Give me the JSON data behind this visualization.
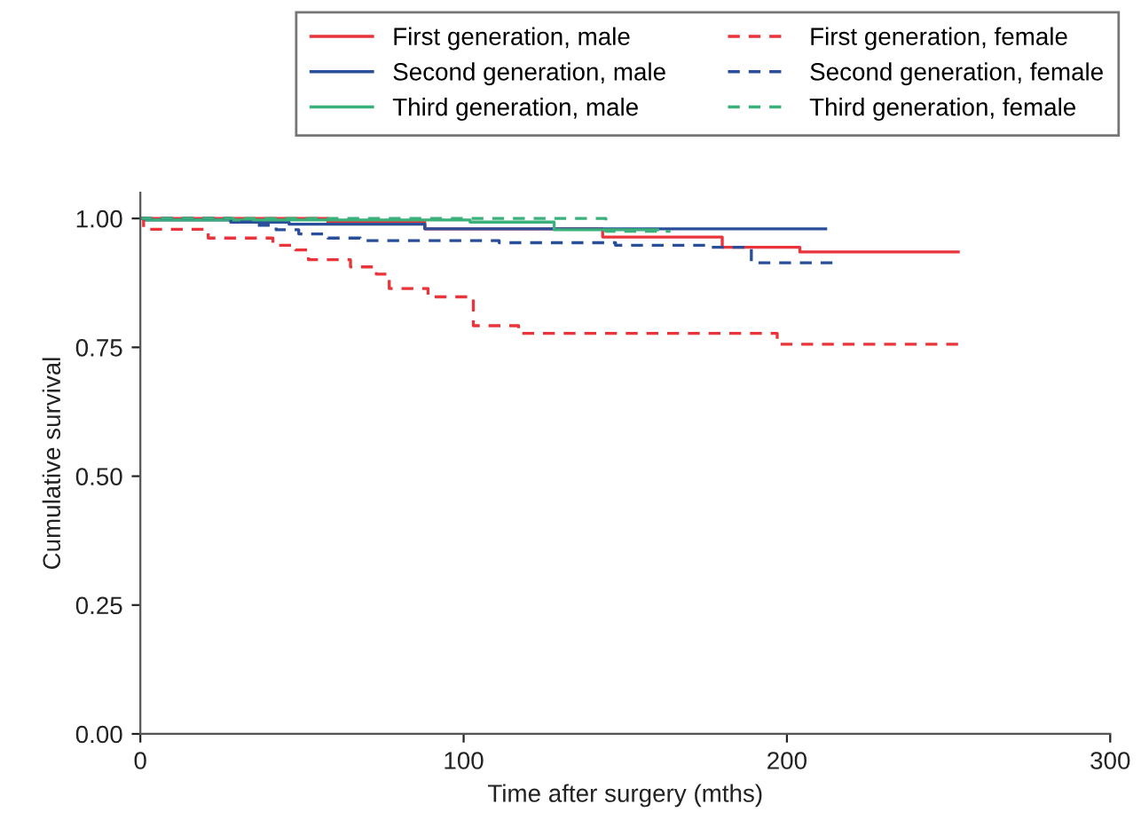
{
  "chart_data": {
    "type": "step",
    "xlabel": "Time after surgery (mths)",
    "ylabel": "Cumulative survival",
    "xlim": [
      0,
      300
    ],
    "xticks": [
      0,
      100,
      200,
      300
    ],
    "ylim": [
      0,
      1.05
    ],
    "yticks": [
      {
        "value": 0,
        "label": "0.00"
      },
      {
        "value": 0.25,
        "label": "0.25"
      },
      {
        "value": 0.5,
        "label": "0.50"
      },
      {
        "value": 0.75,
        "label": "0.75"
      },
      {
        "value": 1,
        "label": "1.00"
      }
    ],
    "grid": false,
    "legend": "top",
    "marker": "none",
    "series": [
      {
        "name": "First generation, male",
        "color": "#e8343a",
        "line_style": "solid",
        "x": [
          0,
          58,
          88,
          143,
          180,
          204,
          253
        ],
        "values": [
          1.0,
          0.993,
          0.98,
          0.964,
          0.944,
          0.935,
          0.935
        ]
      },
      {
        "name": "Second generation, male",
        "color": "#2a4f9a",
        "line_style": "solid",
        "x": [
          0,
          1,
          28,
          46,
          88,
          212
        ],
        "values": [
          1.0,
          0.997,
          0.993,
          0.989,
          0.98,
          0.98
        ]
      },
      {
        "name": "Third generation, male",
        "color": "#3ab07a",
        "line_style": "solid",
        "x": [
          0,
          2,
          102,
          128,
          160
        ],
        "values": [
          1.0,
          0.997,
          0.993,
          0.978,
          0.978
        ]
      },
      {
        "name": "First generation, female",
        "color": "#e8343a",
        "line_style": "dashed",
        "x": [
          0,
          1,
          21,
          41,
          48,
          52,
          65,
          73,
          77,
          89,
          103,
          117,
          197,
          253
        ],
        "values": [
          1.0,
          0.979,
          0.962,
          0.948,
          0.939,
          0.92,
          0.906,
          0.892,
          0.864,
          0.848,
          0.792,
          0.777,
          0.756,
          0.756
        ]
      },
      {
        "name": "Second generation, female",
        "color": "#2a4f9a",
        "line_style": "dashed",
        "x": [
          0,
          28,
          35,
          42,
          49,
          58,
          68,
          111,
          147,
          176,
          189,
          215
        ],
        "values": [
          1.0,
          0.993,
          0.987,
          0.978,
          0.97,
          0.962,
          0.957,
          0.953,
          0.948,
          0.944,
          0.914,
          0.914
        ]
      },
      {
        "name": "Third generation, female",
        "color": "#3ab07a",
        "line_style": "dashed",
        "x": [
          0,
          144,
          164
        ],
        "values": [
          1.0,
          0.975,
          0.975
        ]
      }
    ]
  }
}
